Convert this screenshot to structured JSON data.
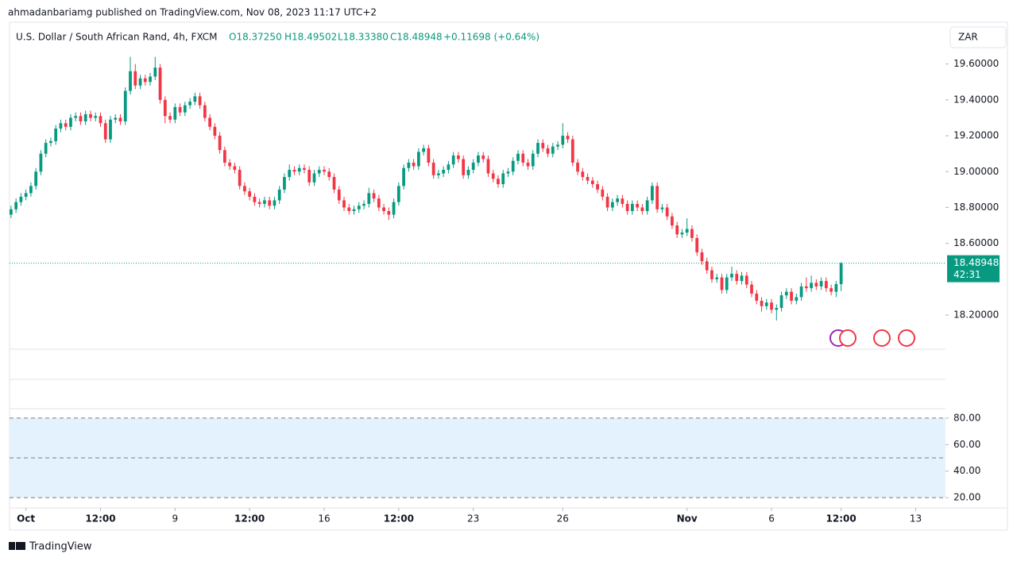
{
  "header": {
    "publisher": "ahmadanbariamg published on TradingView.com, Nov 08, 2023 11:17 UTC+2",
    "symbol": "U.S. Dollar / South African Rand, 4h, FXCM",
    "ohlc": [
      "O18.37250",
      "H18.49502",
      "L18.33380",
      "C18.48948"
    ],
    "change": "+0.11698 (+0.64%)",
    "currency": "ZAR",
    "price_tag": "18.48948",
    "countdown": "42:31"
  },
  "footer": {
    "brand": "TradingView"
  },
  "chart_data": {
    "type": "candlestick",
    "up_color": "#089981",
    "down_color": "#f23645",
    "xlim": [
      -0.3,
      188
    ],
    "xticks": [
      {
        "value": 3,
        "label": "Oct"
      },
      {
        "value": 18,
        "label": "12:00"
      },
      {
        "value": 33,
        "label": "9"
      },
      {
        "value": 48,
        "label": "12:00"
      },
      {
        "value": 63,
        "label": "16"
      },
      {
        "value": 78,
        "label": "12:00"
      },
      {
        "value": 93,
        "label": "23"
      },
      {
        "value": 111,
        "label": "26"
      },
      {
        "value": 136,
        "label": "Nov"
      },
      {
        "value": 153,
        "label": "6"
      },
      {
        "value": 167,
        "label": "12:00"
      },
      {
        "value": 182,
        "label": "13"
      }
    ],
    "ylim": [
      18.01,
      19.78
    ],
    "yticks": [
      {
        "value": 19.6,
        "label": "19.60000"
      },
      {
        "value": 19.4,
        "label": "19.40000"
      },
      {
        "value": 19.2,
        "label": "19.20000"
      },
      {
        "value": 19.0,
        "label": "19.00000"
      },
      {
        "value": 18.8,
        "label": "18.80000"
      },
      {
        "value": 18.6,
        "label": "18.60000"
      },
      {
        "value": 18.2,
        "label": "18.20000"
      }
    ],
    "open": [
      18.76,
      18.79,
      18.83,
      18.86,
      18.88,
      18.92,
      19.0,
      19.1,
      19.16,
      19.17,
      19.24,
      19.27,
      19.25,
      19.3,
      19.31,
      19.28,
      19.32,
      19.3,
      19.31,
      19.27,
      19.18,
      19.29,
      19.3,
      19.28,
      19.45,
      19.56,
      19.48,
      19.52,
      19.5,
      19.53,
      19.58,
      19.4,
      19.31,
      19.29,
      19.36,
      19.33,
      19.37,
      19.39,
      19.42,
      19.37,
      19.3,
      19.25,
      19.2,
      19.12,
      19.05,
      19.03,
      19.01,
      18.92,
      18.89,
      18.86,
      18.83,
      18.82,
      18.84,
      18.81,
      18.84,
      18.9,
      18.97,
      19.01,
      19.0,
      19.02,
      19.01,
      18.94,
      18.99,
      19.01,
      19.0,
      18.97,
      18.9,
      18.84,
      18.8,
      18.78,
      18.79,
      18.81,
      18.82,
      18.88,
      18.85,
      18.8,
      18.78,
      18.76,
      18.83,
      18.92,
      19.02,
      19.05,
      19.03,
      19.11,
      19.13,
      19.05,
      18.98,
      18.99,
      19.01,
      19.04,
      19.09,
      19.07,
      18.98,
      19.01,
      19.05,
      19.09,
      19.07,
      18.99,
      18.96,
      18.93,
      18.99,
      19.0,
      19.06,
      19.1,
      19.05,
      19.03,
      19.1,
      19.16,
      19.13,
      19.1,
      19.14,
      19.15,
      19.2,
      19.18,
      19.05,
      19.0,
      18.97,
      18.95,
      18.93,
      18.9,
      18.86,
      18.8,
      18.83,
      18.85,
      18.82,
      18.78,
      18.82,
      18.8,
      18.78,
      18.84,
      18.92,
      18.79,
      18.8,
      18.75,
      18.7,
      18.65,
      18.66,
      18.68,
      18.63,
      18.55,
      18.5,
      18.45,
      18.4,
      18.41,
      18.34,
      18.41,
      18.43,
      18.39,
      18.42,
      18.37,
      18.32,
      18.28,
      18.25,
      18.27,
      18.23,
      18.24,
      18.31,
      18.33,
      18.28,
      18.3,
      18.36,
      18.35,
      18.38,
      18.36,
      18.39,
      18.35,
      18.33,
      18.3725
    ],
    "high": [
      18.81,
      18.85,
      18.88,
      18.9,
      18.94,
      19.02,
      19.12,
      19.18,
      19.19,
      19.26,
      19.29,
      19.29,
      19.32,
      19.33,
      19.33,
      19.34,
      19.34,
      19.33,
      19.33,
      19.29,
      19.31,
      19.32,
      19.32,
      19.47,
      19.64,
      19.6,
      19.54,
      19.54,
      19.55,
      19.64,
      19.6,
      19.42,
      19.33,
      19.38,
      19.38,
      19.39,
      19.41,
      19.44,
      19.44,
      19.39,
      19.32,
      19.27,
      19.22,
      19.14,
      19.07,
      19.05,
      19.03,
      18.94,
      18.91,
      18.88,
      18.85,
      18.86,
      18.86,
      18.86,
      18.92,
      18.99,
      19.04,
      19.03,
      19.04,
      19.04,
      19.03,
      19.01,
      19.03,
      19.03,
      19.02,
      18.99,
      18.92,
      18.86,
      18.82,
      18.81,
      18.83,
      18.84,
      18.91,
      18.9,
      18.87,
      18.82,
      18.8,
      18.85,
      18.94,
      19.04,
      19.07,
      19.07,
      19.13,
      19.15,
      19.15,
      19.07,
      19.01,
      19.03,
      19.06,
      19.11,
      19.11,
      19.09,
      19.03,
      19.07,
      19.11,
      19.11,
      19.09,
      19.01,
      18.98,
      19.01,
      19.02,
      19.08,
      19.12,
      19.12,
      19.07,
      19.12,
      19.18,
      19.18,
      19.15,
      19.16,
      19.17,
      19.27,
      19.22,
      19.2,
      19.07,
      19.02,
      18.99,
      18.97,
      18.95,
      18.92,
      18.88,
      18.85,
      18.87,
      18.87,
      18.84,
      18.84,
      18.84,
      18.82,
      18.86,
      18.94,
      18.94,
      18.82,
      18.82,
      18.77,
      18.72,
      18.68,
      18.74,
      18.7,
      18.65,
      18.57,
      18.52,
      18.47,
      18.43,
      18.43,
      18.43,
      18.47,
      18.45,
      18.44,
      18.44,
      18.39,
      18.34,
      18.3,
      18.29,
      18.29,
      18.26,
      18.33,
      18.35,
      18.35,
      18.32,
      18.38,
      18.41,
      18.42,
      18.4,
      18.41,
      18.41,
      18.37,
      18.39,
      18.49502
    ],
    "low": [
      18.74,
      18.77,
      18.81,
      18.84,
      18.86,
      18.9,
      18.98,
      19.08,
      19.14,
      19.15,
      19.22,
      19.23,
      19.23,
      19.28,
      19.26,
      19.26,
      19.28,
      19.28,
      19.25,
      19.16,
      19.16,
      19.27,
      19.26,
      19.26,
      19.43,
      19.46,
      19.46,
      19.48,
      19.48,
      19.51,
      19.38,
      19.27,
      19.27,
      19.27,
      19.31,
      19.31,
      19.35,
      19.37,
      19.35,
      19.28,
      19.23,
      19.18,
      19.1,
      19.03,
      19.01,
      18.99,
      18.9,
      18.87,
      18.84,
      18.81,
      18.8,
      18.8,
      18.79,
      18.79,
      18.82,
      18.88,
      18.95,
      18.98,
      18.98,
      18.99,
      18.92,
      18.92,
      18.97,
      18.98,
      18.95,
      18.88,
      18.82,
      18.78,
      18.76,
      18.76,
      18.77,
      18.79,
      18.8,
      18.83,
      18.78,
      18.76,
      18.73,
      18.74,
      18.81,
      18.9,
      19.0,
      19.01,
      19.01,
      19.09,
      19.03,
      18.96,
      18.96,
      18.97,
      18.99,
      19.02,
      19.05,
      18.96,
      18.96,
      18.99,
      19.03,
      19.05,
      18.97,
      18.94,
      18.91,
      18.91,
      18.97,
      18.98,
      19.04,
      19.03,
      19.01,
      19.01,
      19.08,
      19.11,
      19.08,
      19.08,
      19.12,
      19.13,
      19.16,
      19.03,
      18.98,
      18.95,
      18.93,
      18.91,
      18.88,
      18.84,
      18.78,
      18.78,
      18.81,
      18.8,
      18.76,
      18.76,
      18.78,
      18.76,
      18.76,
      18.82,
      18.77,
      18.77,
      18.73,
      18.68,
      18.63,
      18.63,
      18.64,
      18.61,
      18.53,
      18.48,
      18.43,
      18.38,
      18.38,
      18.32,
      18.32,
      18.39,
      18.37,
      18.37,
      18.35,
      18.3,
      18.26,
      18.22,
      18.23,
      18.21,
      18.17,
      18.22,
      18.29,
      18.26,
      18.26,
      18.28,
      18.33,
      18.33,
      18.34,
      18.34,
      18.33,
      18.31,
      18.3,
      18.3338
    ],
    "close": [
      18.79,
      18.83,
      18.86,
      18.88,
      18.92,
      19.0,
      19.1,
      19.16,
      19.17,
      19.24,
      19.27,
      19.25,
      19.3,
      19.31,
      19.28,
      19.32,
      19.3,
      19.31,
      19.27,
      19.18,
      19.29,
      19.3,
      19.28,
      19.45,
      19.56,
      19.48,
      19.52,
      19.5,
      19.53,
      19.58,
      19.4,
      19.31,
      19.29,
      19.36,
      19.33,
      19.37,
      19.39,
      19.42,
      19.37,
      19.3,
      19.25,
      19.2,
      19.12,
      19.05,
      19.03,
      19.01,
      18.92,
      18.89,
      18.86,
      18.83,
      18.82,
      18.84,
      18.81,
      18.84,
      18.9,
      18.97,
      19.01,
      19.0,
      19.02,
      19.01,
      18.94,
      18.99,
      19.01,
      19.0,
      18.97,
      18.9,
      18.84,
      18.8,
      18.78,
      18.79,
      18.81,
      18.82,
      18.88,
      18.85,
      18.8,
      18.78,
      18.76,
      18.83,
      18.92,
      19.02,
      19.05,
      19.03,
      19.11,
      19.13,
      19.05,
      18.98,
      18.99,
      19.01,
      19.04,
      19.09,
      19.07,
      18.98,
      19.01,
      19.05,
      19.09,
      19.07,
      18.99,
      18.96,
      18.93,
      18.99,
      19.0,
      19.06,
      19.1,
      19.05,
      19.03,
      19.1,
      19.16,
      19.13,
      19.1,
      19.14,
      19.15,
      19.2,
      19.18,
      19.05,
      19.0,
      18.97,
      18.95,
      18.93,
      18.9,
      18.86,
      18.8,
      18.83,
      18.85,
      18.82,
      18.78,
      18.82,
      18.8,
      18.78,
      18.84,
      18.92,
      18.79,
      18.8,
      18.75,
      18.7,
      18.65,
      18.66,
      18.68,
      18.63,
      18.55,
      18.5,
      18.45,
      18.4,
      18.41,
      18.34,
      18.41,
      18.43,
      18.39,
      18.42,
      18.37,
      18.32,
      18.28,
      18.25,
      18.27,
      18.23,
      18.24,
      18.31,
      18.33,
      18.28,
      18.3,
      18.36,
      18.35,
      18.38,
      18.36,
      18.39,
      18.35,
      18.33,
      18.3725,
      18.48948
    ],
    "rsi": {
      "ylim": [
        12.3,
        87.1
      ],
      "yticks": [
        {
          "value": 80,
          "label": "80.00"
        },
        {
          "value": 60,
          "label": "60.00"
        },
        {
          "value": 40,
          "label": "40.00"
        },
        {
          "value": 20,
          "label": "20.00"
        }
      ],
      "band": [
        20,
        80
      ],
      "levels": [
        80,
        50,
        20
      ],
      "band_color": "#e3f2fd"
    }
  }
}
